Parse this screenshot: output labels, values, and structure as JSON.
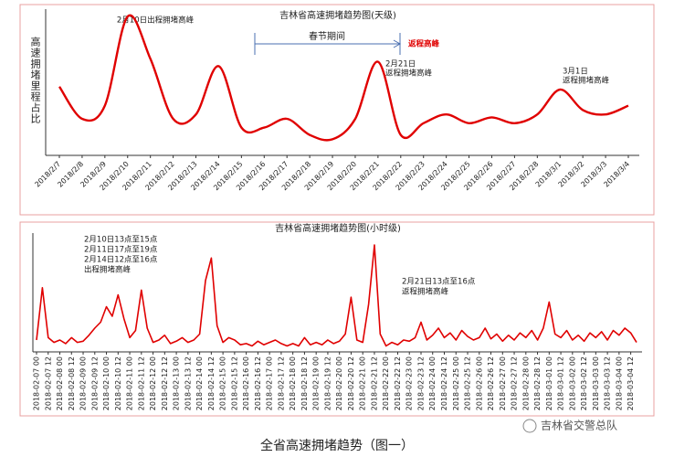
{
  "chart_data": [
    {
      "type": "line",
      "title": "吉林省高速拥堵趋势图(天级)",
      "y_label": "高速拥堵里程占比",
      "smooth": true,
      "color": "#e00000",
      "categories": [
        "2018/2/7",
        "2018/2/8",
        "2018/2/9",
        "2018/2/10",
        "2018/2/11",
        "2018/2/12",
        "2018/2/13",
        "2018/2/14",
        "2018/2/15",
        "2018/2/16",
        "2018/2/17",
        "2018/2/18",
        "2018/2/19",
        "2018/2/20",
        "2018/2/21",
        "2018/2/22",
        "2018/2/23",
        "2018/2/24",
        "2018/2/25",
        "2018/2/26",
        "2018/2/27",
        "2018/2/28",
        "2018/3/1",
        "2018/3/2",
        "2018/3/3",
        "2018/3/4"
      ],
      "values": [
        47,
        25,
        34,
        95,
        66,
        25,
        28,
        61,
        19,
        19,
        25,
        14,
        11,
        25,
        64,
        14,
        22,
        28,
        22,
        26,
        22,
        28,
        45,
        31,
        28,
        34
      ],
      "ylim": [
        0,
        100
      ],
      "annotations": [
        "2月10日出程拥堵高峰",
        "春节期间",
        "返程高峰",
        "2月21日",
        "返程拥堵高峰",
        "3月1日",
        "返程拥堵高峰"
      ]
    },
    {
      "type": "line",
      "title": "吉林省高速拥堵趋势图(小时级)",
      "smooth": false,
      "color": "#e00000",
      "categories": [
        "2018-02-07 00",
        null,
        "2018-02-07 12",
        null,
        "2018-02-08 00",
        null,
        "2018-02-08 12",
        null,
        "2018-02-09 00",
        null,
        "2018-02-09 12",
        null,
        "2018-02-10 00",
        null,
        "2018-02-10 12",
        null,
        "2018-02-11 00",
        null,
        "2018-02-11 12",
        null,
        "2018-02-12 00",
        null,
        "2018-02-12 12",
        null,
        "2018-02-13 00",
        null,
        "2018-02-13 12",
        null,
        "2018-02-14 00",
        null,
        "2018-02-14 12",
        null,
        "2018-02-15 00",
        null,
        "2018-02-15 12",
        null,
        "2018-02-16 00",
        null,
        "2018-02-16 12",
        null,
        "2018-02-17 00",
        null,
        "2018-02-17 12",
        null,
        "2018-02-18 00",
        null,
        "2018-02-18 12",
        null,
        "2018-02-19 00",
        null,
        "2018-02-19 12",
        null,
        "2018-02-20 00",
        null,
        "2018-02-20 12",
        null,
        "2018-02-21 00",
        null,
        "2018-02-21 12",
        null,
        "2018-02-22 00",
        null,
        "2018-02-22 12",
        null,
        "2018-02-23 00",
        null,
        "2018-02-23 12",
        null,
        "2018-02-24 00",
        null,
        "2018-02-24 12",
        null,
        "2018-02-25 00",
        null,
        "2018-02-25 12",
        null,
        "2018-02-26 00",
        null,
        "2018-02-26 12",
        null,
        "2018-02-27 00",
        null,
        "2018-02-27 12",
        null,
        "2018-02-28 00",
        null,
        "2018-02-28 12",
        null,
        "2018-03-01 00",
        null,
        "2018-03-01 12",
        null,
        "2018-03-02 00",
        null,
        "2018-03-02 12",
        null,
        "2018-03-03 00",
        null,
        "2018-03-03 12",
        null,
        "2018-03-04 00",
        null,
        "2018-03-04 12",
        null
      ],
      "values": [
        10,
        54,
        12,
        8,
        10,
        7,
        12,
        8,
        9,
        14,
        20,
        25,
        38,
        30,
        48,
        28,
        12,
        18,
        52,
        20,
        8,
        10,
        14,
        7,
        9,
        12,
        8,
        10,
        15,
        60,
        79,
        22,
        8,
        12,
        10,
        6,
        7,
        5,
        9,
        6,
        8,
        10,
        7,
        5,
        7,
        5,
        12,
        6,
        8,
        6,
        10,
        7,
        9,
        15,
        46,
        10,
        8,
        40,
        90,
        15,
        5,
        8,
        6,
        10,
        9,
        12,
        25,
        10,
        14,
        20,
        12,
        16,
        10,
        18,
        13,
        10,
        12,
        20,
        11,
        15,
        9,
        14,
        10,
        16,
        12,
        18,
        10,
        20,
        42,
        15,
        12,
        18,
        10,
        14,
        9,
        16,
        12,
        17,
        10,
        18,
        14,
        20,
        16,
        8
      ],
      "ylim": [
        0,
        100
      ],
      "annotations": [
        "2月10日13点至15点",
        "2月11日17点至19点",
        "2月14日12点至16点",
        "出程拥堵高峰",
        "2月21日13点至16点",
        "返程拥堵高峰"
      ]
    }
  ],
  "caption": "全省高速拥堵趋势（图一）",
  "watermark": "吉林省交警总队"
}
